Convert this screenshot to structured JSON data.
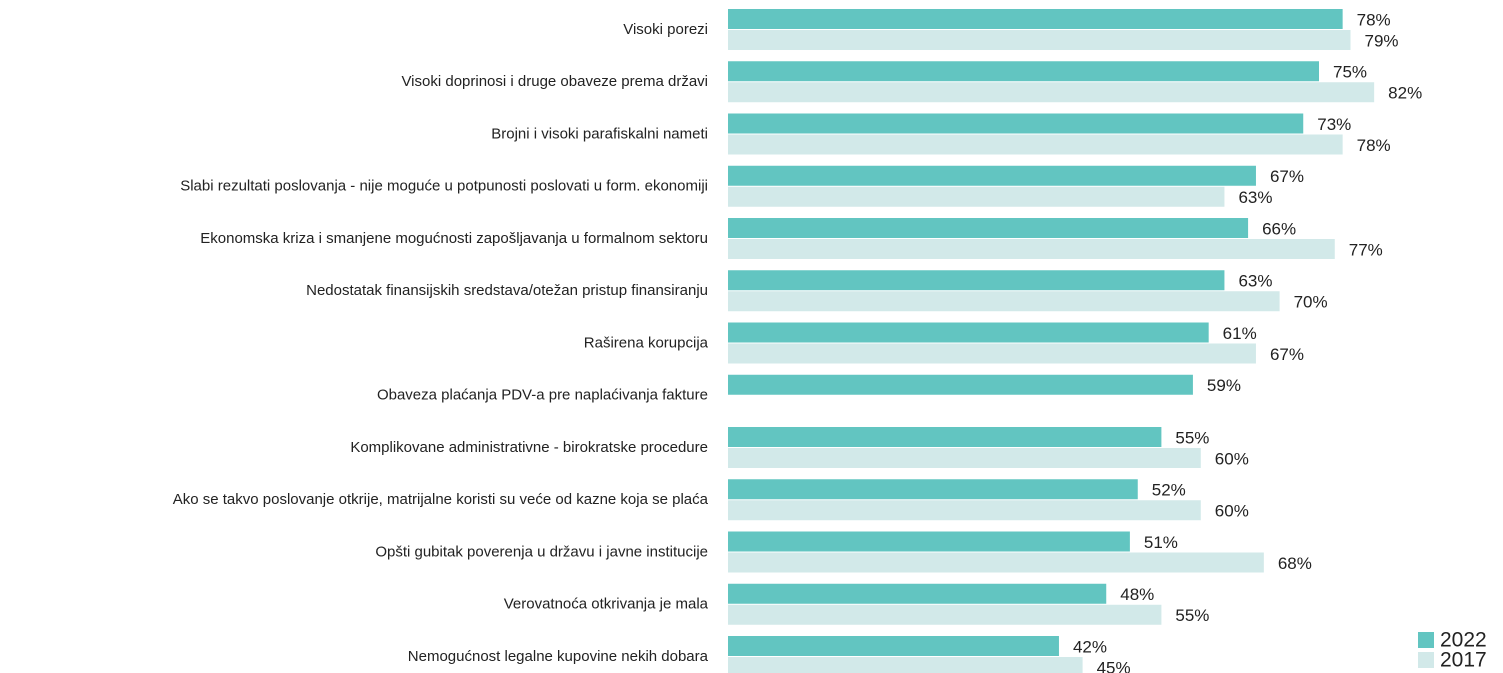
{
  "chart_data": {
    "type": "hbar",
    "categories": [
      "Visoki porezi",
      "Visoki doprinosi i druge obaveze prema državi",
      "Brojni i visoki parafiskalni nameti",
      "Slabi rezultati poslovanja - nije moguće u potpunosti poslovati u form. ekonomiji",
      "Ekonomska kriza i smanjene mogućnosti zapošljavanja u formalnom sektoru",
      "Nedostatak finansijskih sredstava/otežan pristup finansiranju",
      "Raširena korupcija",
      "Obaveza plaćanja PDV-a pre naplaćivanja fakture",
      "Komplikovane administrativne - birokratske procedure",
      "Ako se takvo poslovanje otkrije, matrijalne koristi su veće od kazne koja se plaća",
      "Opšti gubitak poverenja u državu i javne institucije",
      "Verovatnoća otkrivanja je mala",
      "Nemogućnost legalne kupovine nekih dobara"
    ],
    "series": [
      {
        "name": "2022",
        "color": "#62c5c1",
        "values": [
          78,
          75,
          73,
          67,
          66,
          63,
          61,
          59,
          55,
          52,
          51,
          48,
          42
        ],
        "value_labels": [
          "78%",
          "75%",
          "73%",
          "67%",
          "66%",
          "63%",
          "61%",
          "59%",
          "55%",
          "52%",
          "51%",
          "48%",
          "42%"
        ]
      },
      {
        "name": "2017",
        "color": "#d2e9e9",
        "values": [
          79,
          82,
          78,
          63,
          77,
          70,
          67,
          null,
          60,
          60,
          68,
          55,
          45
        ],
        "value_labels": [
          "79%",
          "82%",
          "78%",
          "63%",
          "77%",
          "70%",
          "67%",
          null,
          "60%",
          "60%",
          "68%",
          "55%",
          "45%"
        ]
      }
    ],
    "xlim": [
      0,
      100
    ],
    "legend": "bottom-right"
  }
}
